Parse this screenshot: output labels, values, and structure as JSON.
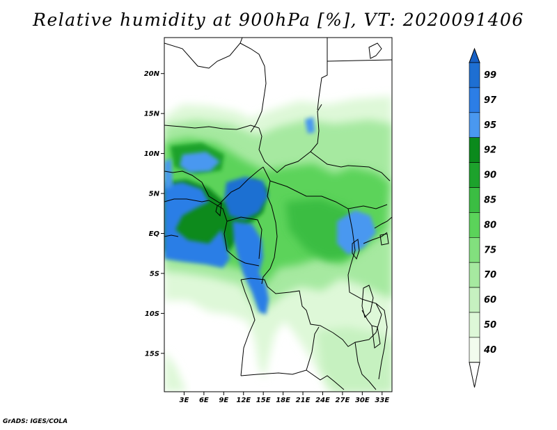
{
  "title": "Relative humidity at 900hPa [%], VT: 2020091406",
  "credit": "GrADS: IGES/COLA",
  "map": {
    "variable": "Relative humidity",
    "level": "900hPa",
    "units": "%",
    "valid_time": "2020091406",
    "lat_ticks": [
      "20N",
      "15N",
      "10N",
      "5N",
      "EQ",
      "5S",
      "10S",
      "15S"
    ],
    "lat_values": [
      20,
      15,
      10,
      5,
      0,
      -5,
      -10,
      -15
    ],
    "lon_ticks": [
      "3E",
      "6E",
      "9E",
      "12E",
      "15E",
      "18E",
      "21E",
      "24E",
      "27E",
      "30E",
      "33E"
    ],
    "lon_values": [
      3,
      6,
      9,
      12,
      15,
      18,
      21,
      24,
      27,
      30,
      33
    ],
    "lat_range": [
      -19.8,
      24.5
    ],
    "lon_range": [
      0,
      34.5
    ]
  },
  "colorbar": {
    "labels": [
      "99",
      "97",
      "95",
      "92",
      "90",
      "85",
      "80",
      "75",
      "70",
      "60",
      "50",
      "40"
    ],
    "colors": [
      "#1e6fd2",
      "#2c7ee6",
      "#4a98f0",
      "#0b8a1c",
      "#1da22c",
      "#3bbd43",
      "#5bd35a",
      "#82e07e",
      "#a6e9a0",
      "#c6f1c0",
      "#def8d8",
      "#f2fcee"
    ],
    "top_color": "#1760c4",
    "bottom_color": "#ffffff"
  }
}
